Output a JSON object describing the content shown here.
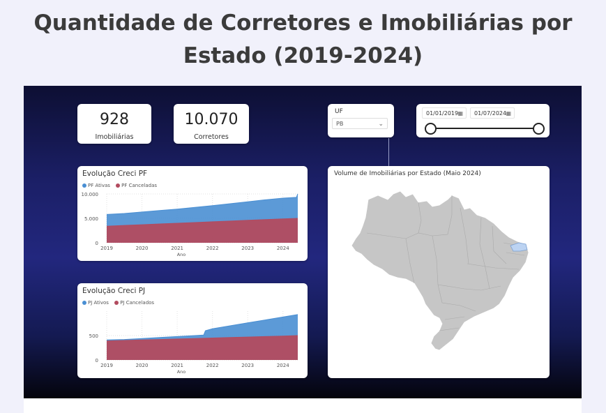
{
  "page": {
    "title_line1": "Quantidade de Corretores e Imobiliárias por",
    "title_line2": "Estado (2019-2024)"
  },
  "colors": {
    "ativos": "#4a8fd3",
    "cancelados": "#b24b5f",
    "map_land": "#c6c6c6",
    "map_highlight": "#bcd3f2"
  },
  "kpis": [
    {
      "value": "928",
      "label": "Imobiliárias"
    },
    {
      "value": "10.070",
      "label": "Corretores"
    }
  ],
  "filter_uf": {
    "title": "UF",
    "selected": "PB",
    "chevron_icon": "chevron-down-icon"
  },
  "date_range": {
    "start": "01/01/2019",
    "end": "01/07/2024",
    "calendar_icon": "calendar-icon"
  },
  "map": {
    "title": "Volume de Imobiliárias por Estado (Maio 2024)",
    "highlighted_state": "PB"
  },
  "chart_data": [
    {
      "type": "area",
      "title": "Evolução Creci PF",
      "xlabel": "Ano",
      "ylabel": "",
      "x_ticks": [
        "2019",
        "2020",
        "2021",
        "2022",
        "2023",
        "2024"
      ],
      "y_ticks": [
        "0",
        "5.000",
        "10.000"
      ],
      "ylim": [
        0,
        10000
      ],
      "xlim": [
        2019.0,
        2024.42
      ],
      "grid": true,
      "legend_position": "top-left",
      "series": [
        {
          "name": "PF Ativas",
          "color": "#4a8fd3",
          "x": [
            2019.0,
            2019.5,
            2020.0,
            2020.5,
            2021.0,
            2021.5,
            2022.0,
            2022.5,
            2023.0,
            2023.5,
            2024.0,
            2024.38,
            2024.42
          ],
          "values": [
            5800,
            6000,
            6300,
            6600,
            6900,
            7250,
            7600,
            8000,
            8400,
            8800,
            9150,
            9300,
            10000
          ]
        },
        {
          "name": "PF Canceladas",
          "color": "#b24b5f",
          "x": [
            2019.0,
            2019.5,
            2020.0,
            2020.5,
            2021.0,
            2021.5,
            2022.0,
            2022.5,
            2023.0,
            2023.5,
            2024.0,
            2024.42
          ],
          "values": [
            3400,
            3550,
            3700,
            3850,
            4000,
            4150,
            4300,
            4450,
            4600,
            4750,
            4900,
            5000
          ]
        }
      ]
    },
    {
      "type": "area",
      "title": "Evolução Creci PJ",
      "xlabel": "Ano",
      "ylabel": "",
      "x_ticks": [
        "2019",
        "2020",
        "2021",
        "2022",
        "2023",
        "2024"
      ],
      "y_ticks": [
        "0",
        "500"
      ],
      "ylim": [
        0,
        1000
      ],
      "xlim": [
        2019.0,
        2024.42
      ],
      "grid": true,
      "legend_position": "top-left",
      "series": [
        {
          "name": "PJ Ativos",
          "color": "#4a8fd3",
          "x": [
            2019.0,
            2019.5,
            2020.0,
            2020.5,
            2021.0,
            2021.5,
            2021.75,
            2021.8,
            2022.0,
            2022.5,
            2023.0,
            2023.5,
            2024.0,
            2024.42
          ],
          "values": [
            410,
            420,
            440,
            460,
            480,
            500,
            510,
            600,
            640,
            700,
            760,
            820,
            880,
            930
          ]
        },
        {
          "name": "PJ Cancelados",
          "color": "#b24b5f",
          "x": [
            2019.0,
            2019.5,
            2020.0,
            2020.5,
            2021.0,
            2021.5,
            2022.0,
            2022.5,
            2023.0,
            2023.5,
            2024.0,
            2024.42
          ],
          "values": [
            390,
            400,
            410,
            420,
            430,
            440,
            450,
            460,
            470,
            480,
            490,
            500
          ]
        }
      ]
    }
  ]
}
